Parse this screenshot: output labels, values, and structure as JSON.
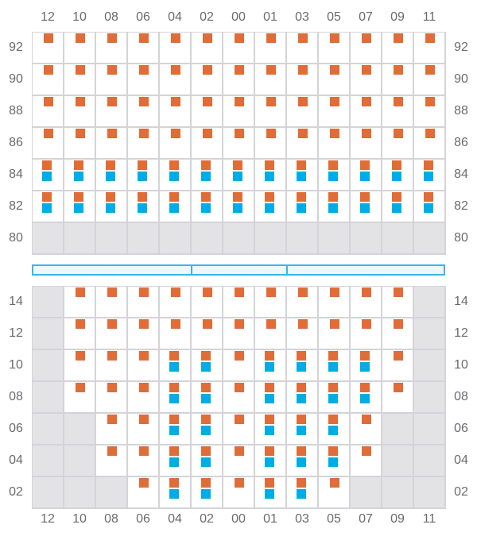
{
  "columns": [
    "12",
    "10",
    "08",
    "06",
    "04",
    "02",
    "00",
    "01",
    "03",
    "05",
    "07",
    "09",
    "11"
  ],
  "top_section": {
    "rows": [
      "92",
      "90",
      "88",
      "86",
      "84",
      "82",
      "80"
    ],
    "cells": [
      "ooooooooooooo",
      "ooooooooooooo",
      "ooooooooooooo",
      "ooooooooooooo",
      "bbbbbbbbbbbbb",
      "bbbbbbbbbbbbb",
      "ggggggggggggg"
    ]
  },
  "bottom_section": {
    "rows": [
      "14",
      "12",
      "10",
      "08",
      "06",
      "04",
      "02"
    ],
    "cells": [
      "gooooooooooog",
      "gooooooooooog",
      "gooobbobbbbog",
      "gooobbobbbbog",
      "ggoobbobbbogg",
      "ggoobbobbbogg",
      "gggobbobboggg"
    ]
  },
  "legend_codes": {
    "o": "orange marker",
    "b": "orange and blue markers",
    "g": "unavailable (grey)"
  },
  "colors": {
    "orange": "#e06c37",
    "blue": "#00ace6",
    "unavailable": "#e3e3e5",
    "separator": "#3cb4e8"
  },
  "separator_segments": 3
}
